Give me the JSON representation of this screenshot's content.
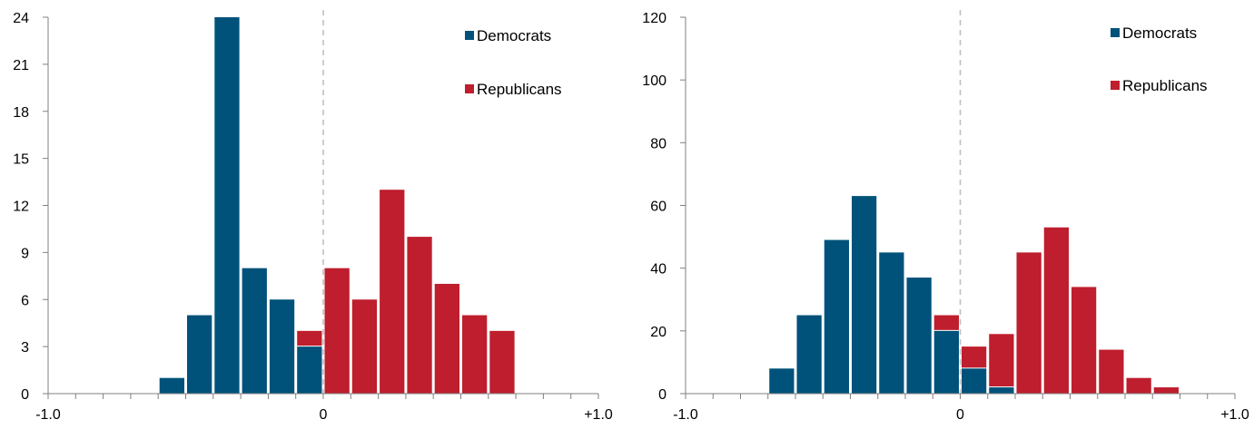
{
  "colors": {
    "democrats": "#00527A",
    "republicans": "#BE1E2D",
    "axis": "#808080",
    "zero_line": "#BFBFBF"
  },
  "chart_data": [
    {
      "type": "bar",
      "stacked": true,
      "bin_width": 0.1,
      "x_range": [
        -1.0,
        1.0
      ],
      "ylim": [
        0,
        24
      ],
      "y_ticks": [
        "0",
        "3",
        "6",
        "9",
        "12",
        "15",
        "18",
        "21",
        "24"
      ],
      "x_tick_labels": [
        {
          "value": -1.0,
          "label": "-1.0"
        },
        {
          "value": 0,
          "label": "0"
        },
        {
          "value": 1.0,
          "label": "+1.0"
        }
      ],
      "zero_reference_line": true,
      "legend": {
        "placement": "top-right"
      },
      "bin_starts": [
        -0.6,
        -0.5,
        -0.4,
        -0.3,
        -0.2,
        -0.1,
        0.0,
        0.1,
        0.2,
        0.3,
        0.4,
        0.5,
        0.6
      ],
      "series": [
        {
          "name": "Democrats",
          "color_key": "democrats",
          "values": [
            1,
            5,
            24,
            8,
            6,
            3,
            0,
            0,
            0,
            0,
            0,
            0,
            0
          ]
        },
        {
          "name": "Republicans",
          "color_key": "republicans",
          "values": [
            0,
            0,
            0,
            0,
            0,
            1,
            8,
            6,
            13,
            10,
            7,
            5,
            4
          ]
        }
      ]
    },
    {
      "type": "bar",
      "stacked": true,
      "bin_width": 0.1,
      "x_range": [
        -1.0,
        1.0
      ],
      "ylim": [
        0,
        120
      ],
      "y_ticks": [
        "0",
        "20",
        "40",
        "60",
        "80",
        "100",
        "120"
      ],
      "x_tick_labels": [
        {
          "value": -1.0,
          "label": "-1.0"
        },
        {
          "value": 0,
          "label": "0"
        },
        {
          "value": 1.0,
          "label": "+1.0"
        }
      ],
      "zero_reference_line": true,
      "legend": {
        "placement": "top-right"
      },
      "bin_starts": [
        -0.7,
        -0.6,
        -0.5,
        -0.4,
        -0.3,
        -0.2,
        -0.1,
        0.0,
        0.1,
        0.2,
        0.3,
        0.4,
        0.5,
        0.6,
        0.7
      ],
      "series": [
        {
          "name": "Democrats",
          "color_key": "democrats",
          "values": [
            8,
            25,
            49,
            63,
            45,
            37,
            20,
            8,
            2,
            0,
            0,
            0,
            0,
            0,
            0
          ]
        },
        {
          "name": "Republicans",
          "color_key": "republicans",
          "values": [
            0,
            0,
            0,
            0,
            0,
            0,
            5,
            7,
            17,
            45,
            53,
            34,
            14,
            5,
            2
          ]
        }
      ]
    }
  ]
}
